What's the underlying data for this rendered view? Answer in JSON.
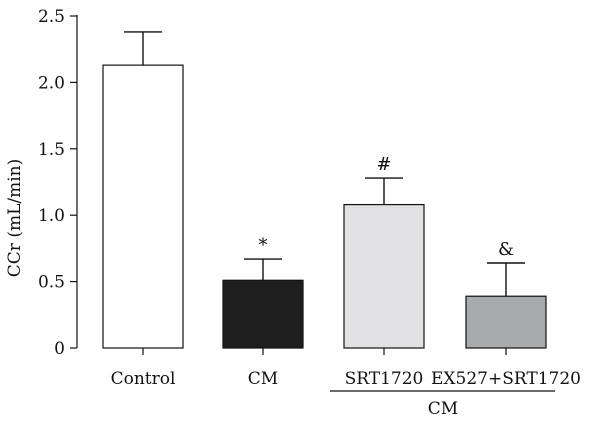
{
  "chart_data": {
    "type": "bar",
    "ylabel": "CCr (mL/min)",
    "ylim": [
      0,
      2.5
    ],
    "yticks": [
      "0",
      "0.5",
      "1.0",
      "1.5",
      "2.0",
      "2.5"
    ],
    "categories": [
      "Control",
      "CM",
      "SRT1720",
      "EX527+SRT1720"
    ],
    "values": [
      2.13,
      0.51,
      1.08,
      0.39
    ],
    "errors": [
      0.25,
      0.16,
      0.2,
      0.25
    ],
    "colors": [
      "#ffffff",
      "#1e1e1e",
      "#e1e1e3",
      "#a8aaac"
    ],
    "annotations": [
      "",
      "*",
      "#",
      "&"
    ],
    "group_label": "CM",
    "group_categories": [
      "SRT1720",
      "EX527+SRT1720"
    ],
    "grid": false,
    "legend": "none"
  }
}
